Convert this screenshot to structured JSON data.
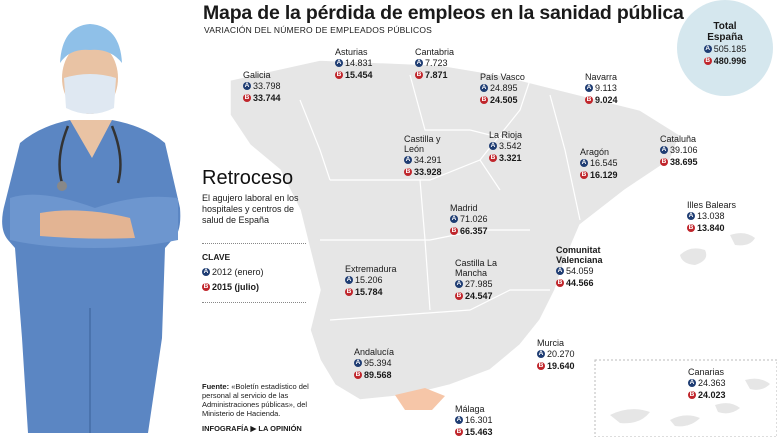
{
  "title": "Mapa de la pérdida de empleos en la sanidad pública",
  "subtitle": "VARIACIÓN DEL NÚMERO DE EMPLEADOS PÚBLICOS",
  "badges": {
    "a": "A",
    "b": "B"
  },
  "total": {
    "label_line1": "Total",
    "label_line2": "España",
    "a": "505.185",
    "b": "480.996"
  },
  "regions": [
    {
      "key": "galicia",
      "name": "Galicia",
      "a": "33.798",
      "b": "33.744"
    },
    {
      "key": "asturias",
      "name": "Asturias",
      "a": "14.831",
      "b": "15.454"
    },
    {
      "key": "cantabria",
      "name": "Cantabria",
      "a": "7.723",
      "b": "7.871"
    },
    {
      "key": "paisvasco",
      "name": "País Vasco",
      "a": "24.895",
      "b": "24.505"
    },
    {
      "key": "navarra",
      "name": "Navarra",
      "a": "9.113",
      "b": "9.024"
    },
    {
      "key": "castillaleon",
      "name": "Castilla y León",
      "a": "34.291",
      "b": "33.928"
    },
    {
      "key": "larioja",
      "name": "La Rioja",
      "a": "3.542",
      "b": "3.321"
    },
    {
      "key": "aragon",
      "name": "Aragón",
      "a": "16.545",
      "b": "16.129"
    },
    {
      "key": "cataluna",
      "name": "Cataluña",
      "a": "39.106",
      "b": "38.695"
    },
    {
      "key": "madrid",
      "name": "Madrid",
      "a": "71.026",
      "b": "66.357"
    },
    {
      "key": "baleares",
      "name": "Illes Balears",
      "a": "13.038",
      "b": "13.840"
    },
    {
      "key": "extremadura",
      "name": "Extremadura",
      "a": "15.206",
      "b": "15.784"
    },
    {
      "key": "castillamancha",
      "name": "Castilla La Mancha",
      "a": "27.985",
      "b": "24.547"
    },
    {
      "key": "valenciana",
      "name": "Comunitat Valenciana",
      "a": "54.059",
      "b": "44.566"
    },
    {
      "key": "andalucia",
      "name": "Andalucía",
      "a": "95.394",
      "b": "89.568"
    },
    {
      "key": "murcia",
      "name": "Murcia",
      "a": "20.270",
      "b": "19.640"
    },
    {
      "key": "canarias",
      "name": "Canarias",
      "a": "24.363",
      "b": "24.023"
    },
    {
      "key": "malaga",
      "name": "Málaga",
      "a": "16.301",
      "b": "15.463"
    }
  ],
  "sidebar": {
    "heading": "Retroceso",
    "text": "El agujero laboral en los hospitales y centros de salud de España",
    "clave_label": "CLAVE",
    "legend_a": "2012 (enero)",
    "legend_b": "2015 (julio)",
    "source_label": "Fuente:",
    "source_text": "«Boletín estadístico del personal al servicio de las Administraciones públicas», del Ministerio de Hacienda.",
    "credit_label": "INFOGRAFÍA",
    "credit_name": "LA OPINIÓN"
  },
  "colors": {
    "badge_a": "#1f3d73",
    "badge_b": "#c0262c",
    "map": "#e6e6e6",
    "highlight": "#f6c6a8",
    "total_circle": "#d5e7ee"
  }
}
